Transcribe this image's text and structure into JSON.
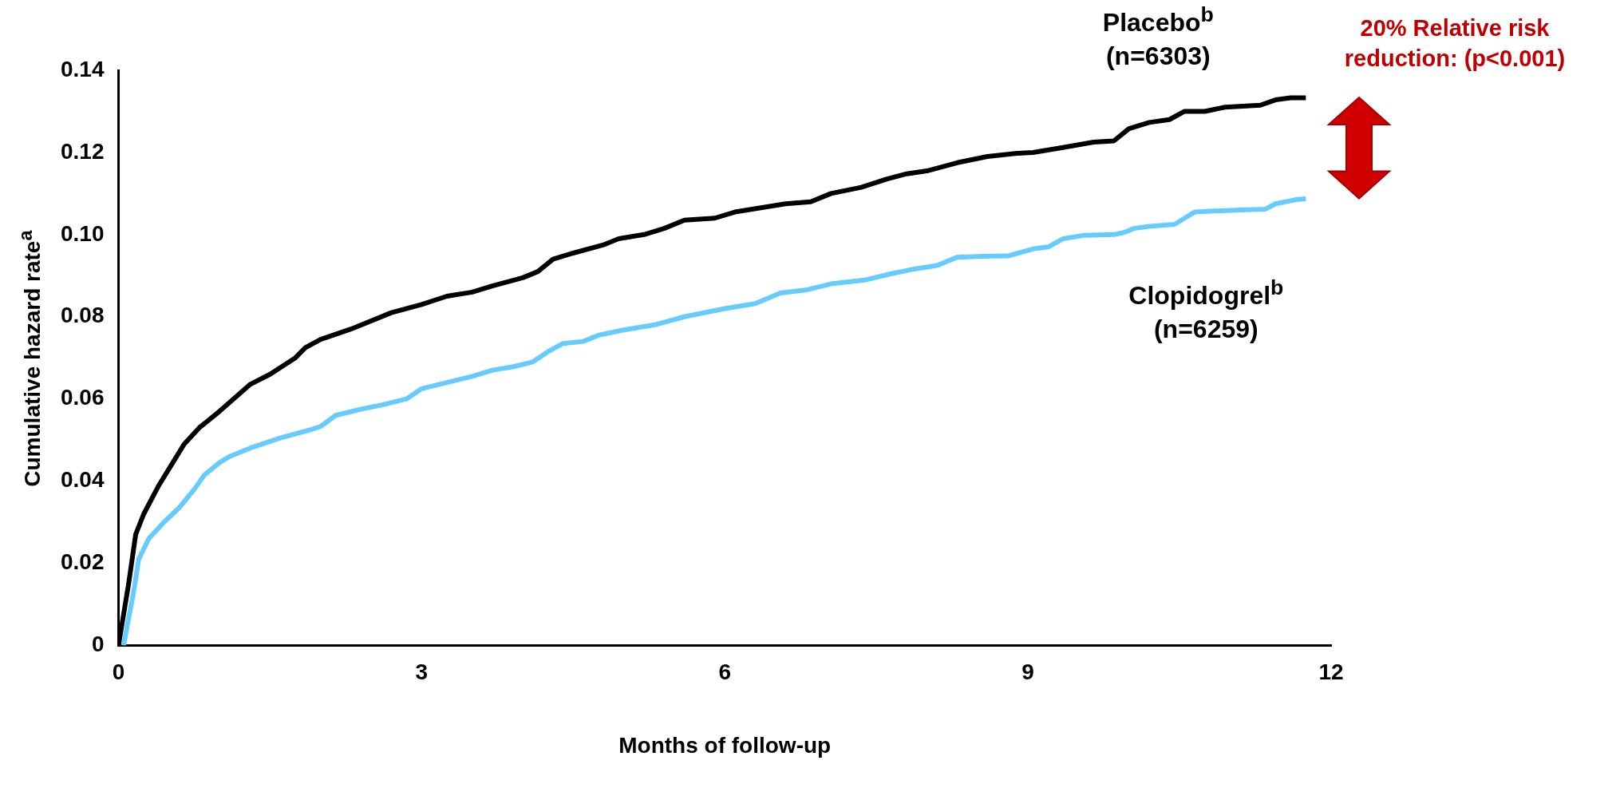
{
  "chart_data": {
    "type": "line",
    "xlabel": "Months of follow-up",
    "ylabel": "Cumulative hazard rate$^{a}$",
    "xlim": [
      0,
      12
    ],
    "xticks": [
      0,
      3,
      6,
      9,
      12
    ],
    "ylim": [
      0,
      0.14
    ],
    "yticks": [
      0,
      0.02,
      0.04,
      0.06,
      0.08,
      {
        "value": 0.1,
        "label": "0.10"
      },
      0.12,
      0.14
    ],
    "grid": false,
    "legend": false,
    "marker": "none",
    "line_style": "solid",
    "annotations": [
      "20% Relative risk reduction: (p<0.001)"
    ],
    "series": [
      {
        "name": "Placebo$^{b}$ (n=6303)",
        "color": "#000000",
        "x": [
          0,
          0.1,
          0.17,
          0.25,
          0.4,
          0.55,
          0.65,
          0.8,
          1.0,
          1.3,
          1.5,
          1.75,
          1.85,
          2.0,
          2.3,
          2.7,
          3.0,
          3.25,
          3.5,
          3.7,
          4.0,
          4.15,
          4.3,
          4.5,
          4.8,
          4.95,
          5.2,
          5.4,
          5.6,
          5.9,
          6.1,
          6.6,
          6.85,
          7.05,
          7.35,
          7.6,
          7.8,
          8.0,
          8.3,
          8.6,
          8.9,
          9.05,
          9.3,
          9.65,
          9.85,
          10.0,
          10.2,
          10.4,
          10.55,
          10.75,
          10.95,
          11.3,
          11.45,
          11.6,
          11.75
        ],
        "values": [
          0,
          0.015,
          0.027,
          0.032,
          0.039,
          0.045,
          0.049,
          0.053,
          0.057,
          0.0635,
          0.066,
          0.07,
          0.0725,
          0.0745,
          0.077,
          0.081,
          0.083,
          0.085,
          0.086,
          0.0875,
          0.0895,
          0.091,
          0.094,
          0.0955,
          0.0975,
          0.099,
          0.1,
          0.1015,
          0.1035,
          0.104,
          0.1055,
          0.1075,
          0.108,
          0.11,
          0.1115,
          0.1135,
          0.1148,
          0.1155,
          0.1175,
          0.119,
          0.1198,
          0.12,
          0.121,
          0.1225,
          0.1228,
          0.1258,
          0.1273,
          0.128,
          0.13,
          0.13,
          0.131,
          0.1315,
          0.1328,
          0.1333,
          0.1333
        ]
      },
      {
        "name": "Clopidogrel$^{b}$ (n=6259)",
        "color": "#66ccff",
        "x": [
          0.05,
          0.15,
          0.2,
          0.3,
          0.45,
          0.6,
          0.75,
          0.85,
          1.0,
          1.1,
          1.3,
          1.6,
          1.9,
          2.0,
          2.15,
          2.4,
          2.6,
          2.85,
          3.0,
          3.25,
          3.5,
          3.7,
          3.9,
          4.1,
          4.25,
          4.4,
          4.6,
          4.75,
          5.0,
          5.3,
          5.6,
          6.0,
          6.3,
          6.55,
          6.8,
          7.05,
          7.4,
          7.65,
          7.85,
          8.1,
          8.3,
          8.55,
          8.8,
          9.05,
          9.2,
          9.35,
          9.55,
          9.85,
          9.95,
          10.05,
          10.2,
          10.45,
          10.65,
          10.8,
          11.1,
          11.35,
          11.45,
          11.65,
          11.75
        ],
        "values": [
          0,
          0.013,
          0.021,
          0.026,
          0.03,
          0.0335,
          0.038,
          0.0415,
          0.0445,
          0.046,
          0.048,
          0.0505,
          0.0525,
          0.0533,
          0.056,
          0.0575,
          0.0585,
          0.06,
          0.0625,
          0.064,
          0.0655,
          0.067,
          0.0678,
          0.069,
          0.0715,
          0.0735,
          0.074,
          0.0755,
          0.0768,
          0.078,
          0.08,
          0.082,
          0.0832,
          0.0858,
          0.0865,
          0.088,
          0.089,
          0.0905,
          0.0915,
          0.0925,
          0.0945,
          0.0947,
          0.0948,
          0.0965,
          0.097,
          0.099,
          0.0998,
          0.1,
          0.1005,
          0.1015,
          0.102,
          0.1025,
          0.1055,
          0.1057,
          0.106,
          0.1062,
          0.1075,
          0.1085,
          0.1087
        ]
      }
    ]
  }
}
